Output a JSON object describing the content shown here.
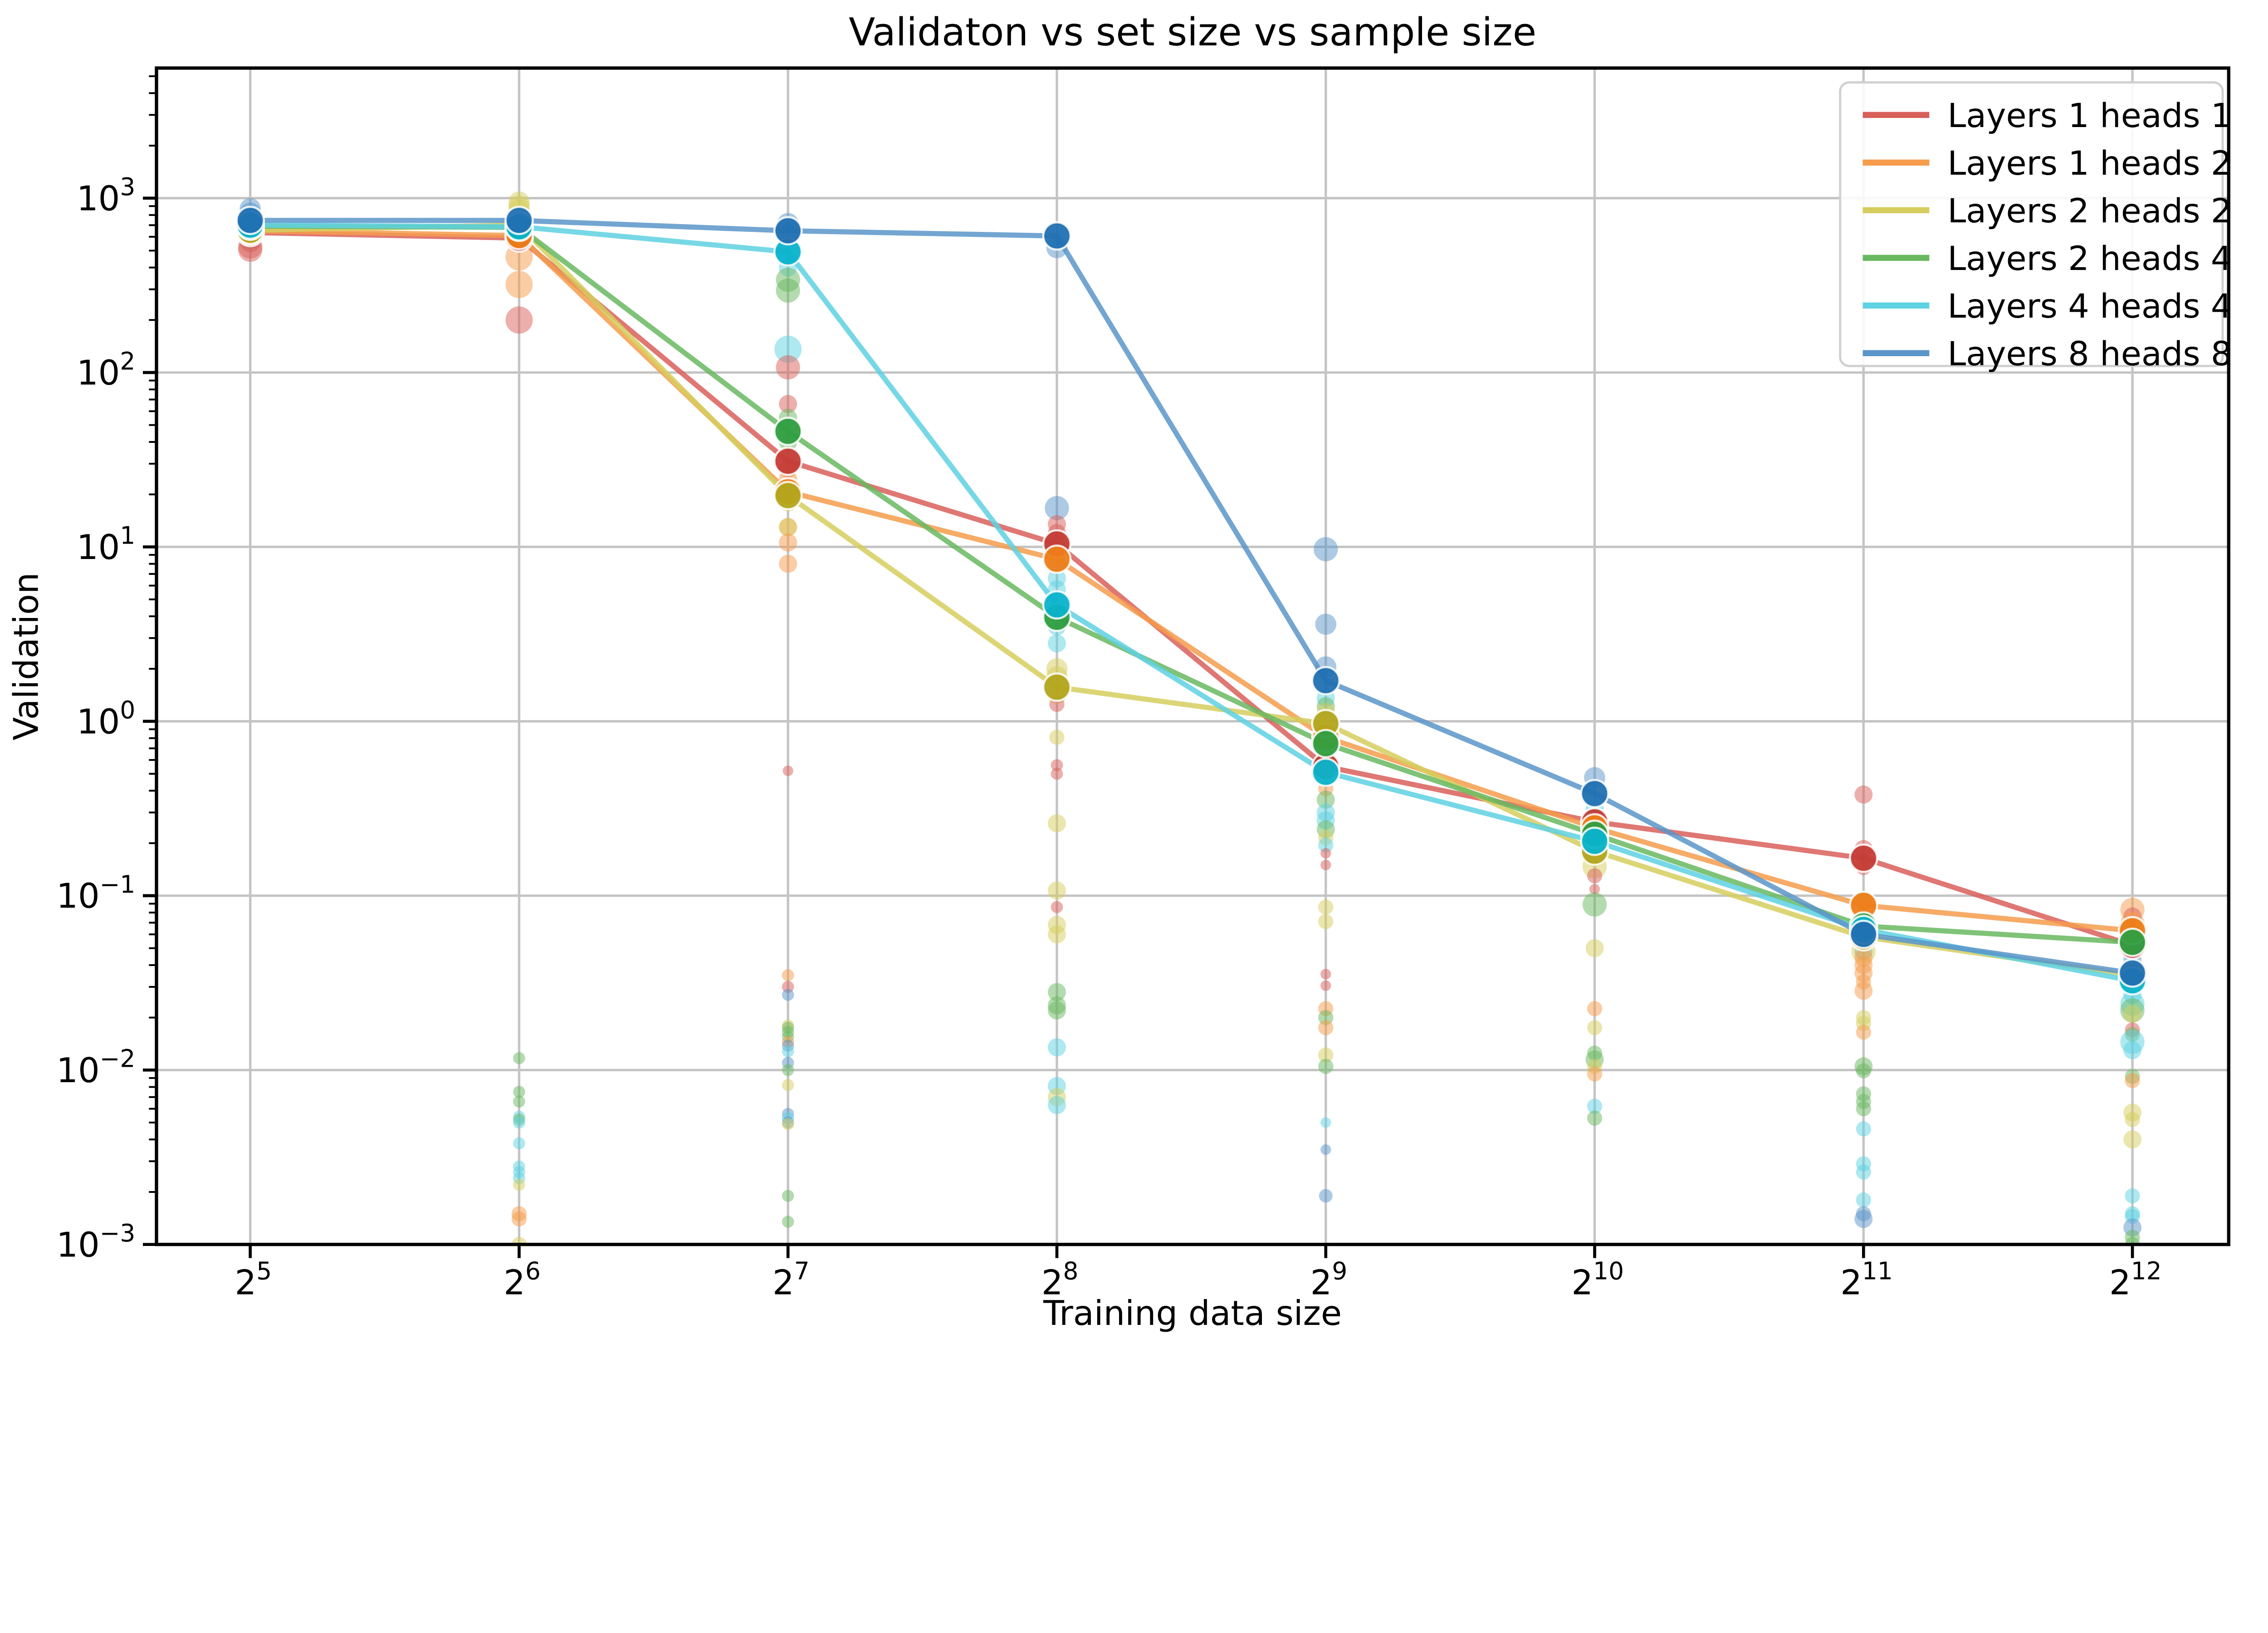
{
  "page": {
    "background": "#ffffff"
  },
  "chart_data": {
    "type": "line+scatter",
    "title": "Validaton vs set size vs sample size",
    "xlabel": "Training data size",
    "ylabel": "Validation",
    "x_scale": "log2",
    "y_scale": "log10",
    "grid": true,
    "legend_position": "upper right",
    "x_tick_base": "2",
    "x_tick_exponents": [
      5,
      6,
      7,
      8,
      9,
      10,
      11,
      12
    ],
    "y_tick_base": "10",
    "y_tick_exponents": [
      3,
      2,
      1,
      0,
      -1,
      -2,
      -3
    ],
    "xlim_pow2": [
      4.65,
      12.36
    ],
    "ylim": [
      0.001,
      5570
    ],
    "x_values": [
      32,
      64,
      128,
      256,
      512,
      1024,
      2048,
      4096
    ],
    "series": [
      {
        "name": "Layers 1 heads 1",
        "color": "#d95f5a",
        "node_color": "#c43c35",
        "line": [
          635,
          590,
          31,
          10.4,
          0.55,
          0.265,
          0.164,
          0.052
        ]
      },
      {
        "name": "Layers 1 heads 2",
        "color": "#f59c4c",
        "node_color": "#ee7d18",
        "line": [
          650,
          610,
          20.7,
          8.5,
          0.81,
          0.245,
          0.088,
          0.063
        ]
      },
      {
        "name": "Layers 2 heads 2",
        "color": "#d5ce5e",
        "node_color": "#b3a51d",
        "line": [
          655,
          700,
          19.7,
          1.57,
          0.97,
          0.18,
          0.058,
          0.035
        ]
      },
      {
        "name": "Layers 2 heads 4",
        "color": "#69b860",
        "node_color": "#2f9e40",
        "line": [
          690,
          680,
          46,
          3.95,
          0.745,
          0.225,
          0.067,
          0.054
        ]
      },
      {
        "name": "Layers 4 heads 4",
        "color": "#5ed1e2",
        "node_color": "#09b3cb",
        "line": [
          700,
          685,
          492,
          4.65,
          0.51,
          0.205,
          0.064,
          0.0325
        ]
      },
      {
        "name": "Layers 8 heads 8",
        "color": "#5b95c9",
        "node_color": "#2170b2",
        "line": [
          745,
          745,
          650,
          607,
          1.71,
          0.385,
          0.06,
          0.036
        ]
      }
    ],
    "scatter": [
      {
        "x": 32,
        "pts": [
          [
            5,
            870,
            7
          ],
          [
            5,
            820,
            7
          ],
          [
            5,
            640,
            7
          ],
          [
            5,
            600,
            7
          ],
          [
            4,
            645,
            7
          ],
          [
            4,
            610,
            7
          ],
          [
            4,
            575,
            7
          ],
          [
            3,
            660,
            7
          ],
          [
            3,
            625,
            7
          ],
          [
            3,
            590,
            7
          ],
          [
            2,
            640,
            7
          ],
          [
            2,
            615,
            7
          ],
          [
            1,
            632,
            7
          ],
          [
            1,
            610,
            7
          ],
          [
            0,
            602,
            7
          ],
          [
            0,
            562,
            7
          ],
          [
            0,
            528,
            8
          ],
          [
            0,
            506,
            8
          ]
        ]
      },
      {
        "x": 64,
        "pts": [
          [
            2,
            950,
            7
          ],
          [
            2,
            900,
            7
          ],
          [
            2,
            855,
            7
          ],
          [
            2,
            790,
            7
          ],
          [
            2,
            585,
            7
          ],
          [
            5,
            700,
            7
          ],
          [
            5,
            668,
            7
          ],
          [
            4,
            648,
            7
          ],
          [
            3,
            632,
            7
          ],
          [
            1,
            460,
            9
          ],
          [
            1,
            320,
            9
          ],
          [
            0,
            200,
            9
          ],
          [
            3,
            0.0117,
            4
          ],
          [
            3,
            0.0075,
            4
          ],
          [
            3,
            0.0066,
            4
          ],
          [
            4,
            0.0054,
            4
          ],
          [
            3,
            0.0052,
            4
          ],
          [
            4,
            0.005,
            4
          ],
          [
            4,
            0.0038,
            4
          ],
          [
            4,
            0.0028,
            4
          ],
          [
            4,
            0.0026,
            4
          ],
          [
            4,
            0.0024,
            4
          ],
          [
            2,
            0.0022,
            4
          ],
          [
            1,
            0.0015,
            5
          ],
          [
            1,
            0.0014,
            5
          ],
          [
            2,
            0.001,
            5
          ]
        ]
      },
      {
        "x": 128,
        "pts": [
          [
            5,
            715,
            7
          ],
          [
            5,
            612,
            7
          ],
          [
            4,
            455,
            6
          ],
          [
            4,
            400,
            6
          ],
          [
            4,
            136,
            9
          ],
          [
            3,
            340,
            8
          ],
          [
            3,
            295,
            8
          ],
          [
            0,
            107,
            8
          ],
          [
            0,
            66,
            6
          ],
          [
            3,
            55,
            6
          ],
          [
            3,
            40,
            6
          ],
          [
            0,
            28,
            6
          ],
          [
            1,
            24.6,
            6
          ],
          [
            1,
            18.6,
            6
          ],
          [
            2,
            18,
            6
          ],
          [
            1,
            13,
            6
          ],
          [
            2,
            13,
            6
          ],
          [
            1,
            10.6,
            6
          ],
          [
            1,
            8.0,
            6
          ],
          [
            0,
            0.52,
            3.5
          ],
          [
            1,
            0.035,
            4
          ],
          [
            0,
            0.03,
            4
          ],
          [
            5,
            0.027,
            4
          ],
          [
            2,
            0.018,
            4
          ],
          [
            3,
            0.0175,
            4
          ],
          [
            3,
            0.0165,
            4
          ],
          [
            3,
            0.0155,
            4
          ],
          [
            1,
            0.0145,
            4
          ],
          [
            5,
            0.0138,
            4
          ],
          [
            4,
            0.0128,
            4
          ],
          [
            5,
            0.011,
            4
          ],
          [
            3,
            0.01,
            4
          ],
          [
            2,
            0.0082,
            4
          ],
          [
            5,
            0.0056,
            4
          ],
          [
            4,
            0.0053,
            4
          ],
          [
            5,
            0.005,
            4
          ],
          [
            2,
            0.0049,
            4
          ],
          [
            3,
            0.0019,
            4
          ],
          [
            3,
            0.00135,
            4
          ]
        ]
      },
      {
        "x": 256,
        "pts": [
          [
            5,
            520,
            7
          ],
          [
            5,
            16.7,
            8
          ],
          [
            0,
            13.5,
            6
          ],
          [
            0,
            12,
            6
          ],
          [
            3,
            10,
            6
          ],
          [
            4,
            8.0,
            6
          ],
          [
            4,
            6.6,
            6
          ],
          [
            4,
            5.7,
            6
          ],
          [
            4,
            3.5,
            6
          ],
          [
            4,
            2.8,
            6
          ],
          [
            2,
            2.0,
            7
          ],
          [
            2,
            1.8,
            7
          ],
          [
            2,
            1.45,
            7
          ],
          [
            0,
            1.25,
            5
          ],
          [
            2,
            0.81,
            5
          ],
          [
            0,
            0.56,
            4
          ],
          [
            0,
            0.5,
            4
          ],
          [
            2,
            0.26,
            6
          ],
          [
            2,
            0.107,
            6
          ],
          [
            0,
            0.086,
            4
          ],
          [
            2,
            0.068,
            6
          ],
          [
            2,
            0.06,
            6
          ],
          [
            3,
            0.028,
            6
          ],
          [
            3,
            0.0235,
            6
          ],
          [
            3,
            0.022,
            6
          ],
          [
            4,
            0.0135,
            6
          ],
          [
            4,
            0.0081,
            6
          ],
          [
            2,
            0.007,
            6
          ],
          [
            4,
            0.0063,
            6
          ]
        ]
      },
      {
        "x": 512,
        "pts": [
          [
            5,
            9.7,
            8
          ],
          [
            5,
            3.6,
            7
          ],
          [
            5,
            2.05,
            7
          ],
          [
            4,
            1.36,
            6
          ],
          [
            3,
            1.22,
            6
          ],
          [
            2,
            1.13,
            6
          ],
          [
            1,
            0.645,
            6
          ],
          [
            2,
            0.575,
            7
          ],
          [
            1,
            0.41,
            5
          ],
          [
            3,
            0.355,
            6
          ],
          [
            4,
            0.3,
            6
          ],
          [
            4,
            0.27,
            6
          ],
          [
            3,
            0.24,
            6
          ],
          [
            2,
            0.215,
            5
          ],
          [
            4,
            0.195,
            5
          ],
          [
            0,
            0.175,
            3.5
          ],
          [
            0,
            0.15,
            3.5
          ],
          [
            2,
            0.086,
            5
          ],
          [
            2,
            0.071,
            5
          ],
          [
            0,
            0.0355,
            3.5
          ],
          [
            0,
            0.0305,
            3.5
          ],
          [
            1,
            0.0225,
            5
          ],
          [
            3,
            0.02,
            5
          ],
          [
            1,
            0.0175,
            5
          ],
          [
            2,
            0.0122,
            5
          ],
          [
            3,
            0.0105,
            5
          ],
          [
            4,
            0.005,
            3.5
          ],
          [
            5,
            0.0035,
            3.5
          ],
          [
            5,
            0.0019,
            4.5
          ]
        ]
      },
      {
        "x": 1024,
        "pts": [
          [
            5,
            0.475,
            7
          ],
          [
            4,
            0.315,
            6
          ],
          [
            4,
            0.28,
            6
          ],
          [
            2,
            0.19,
            6
          ],
          [
            2,
            0.165,
            6
          ],
          [
            2,
            0.147,
            8
          ],
          [
            0,
            0.13,
            5
          ],
          [
            0,
            0.109,
            3.5
          ],
          [
            3,
            0.089,
            8
          ],
          [
            2,
            0.05,
            6
          ],
          [
            1,
            0.0225,
            5
          ],
          [
            2,
            0.0175,
            5
          ],
          [
            3,
            0.0125,
            5
          ],
          [
            3,
            0.0115,
            6
          ],
          [
            2,
            0.0105,
            5
          ],
          [
            1,
            0.0095,
            5
          ],
          [
            4,
            0.0062,
            5
          ],
          [
            3,
            0.0053,
            5
          ]
        ]
      },
      {
        "x": 2048,
        "pts": [
          [
            0,
            0.38,
            6
          ],
          [
            0,
            0.185,
            6
          ],
          [
            0,
            0.145,
            5
          ],
          [
            3,
            0.093,
            6
          ],
          [
            5,
            0.053,
            6
          ],
          [
            5,
            0.048,
            6
          ],
          [
            2,
            0.048,
            8
          ],
          [
            1,
            0.044,
            6
          ],
          [
            1,
            0.04,
            6
          ],
          [
            1,
            0.036,
            6
          ],
          [
            1,
            0.032,
            5
          ],
          [
            1,
            0.0285,
            6
          ],
          [
            2,
            0.02,
            5
          ],
          [
            2,
            0.0185,
            5
          ],
          [
            1,
            0.0165,
            5
          ],
          [
            3,
            0.0105,
            6
          ],
          [
            3,
            0.0099,
            5
          ],
          [
            3,
            0.0073,
            5
          ],
          [
            3,
            0.0066,
            5
          ],
          [
            3,
            0.006,
            5
          ],
          [
            4,
            0.0046,
            5
          ],
          [
            4,
            0.0029,
            5
          ],
          [
            4,
            0.0026,
            5
          ],
          [
            4,
            0.0018,
            5
          ],
          [
            5,
            0.0015,
            5
          ],
          [
            5,
            0.0014,
            6
          ]
        ]
      },
      {
        "x": 4096,
        "pts": [
          [
            1,
            0.083,
            8
          ],
          [
            0,
            0.076,
            6
          ],
          [
            1,
            0.069,
            8
          ],
          [
            3,
            0.059,
            8
          ],
          [
            5,
            0.047,
            6
          ],
          [
            5,
            0.043,
            6
          ],
          [
            5,
            0.039,
            6
          ],
          [
            4,
            0.03,
            6
          ],
          [
            4,
            0.027,
            6
          ],
          [
            4,
            0.024,
            8
          ],
          [
            3,
            0.022,
            8
          ],
          [
            2,
            0.021,
            6
          ],
          [
            0,
            0.017,
            5
          ],
          [
            3,
            0.016,
            5
          ],
          [
            4,
            0.0145,
            8
          ],
          [
            4,
            0.013,
            6
          ],
          [
            3,
            0.0092,
            5
          ],
          [
            1,
            0.0087,
            5
          ],
          [
            2,
            0.0057,
            6
          ],
          [
            2,
            0.0052,
            5
          ],
          [
            2,
            0.004,
            6
          ],
          [
            4,
            0.0019,
            5
          ],
          [
            4,
            0.0015,
            5
          ],
          [
            4,
            0.00145,
            5
          ],
          [
            5,
            0.00125,
            6
          ],
          [
            3,
            0.0011,
            5
          ],
          [
            3,
            0.001,
            5
          ]
        ]
      }
    ],
    "style": {
      "grid_color": "#c4c4c4",
      "spine_color": "#000000",
      "legend_border_color": "#d0d0d0",
      "legend_bg": "#ffffff"
    }
  }
}
